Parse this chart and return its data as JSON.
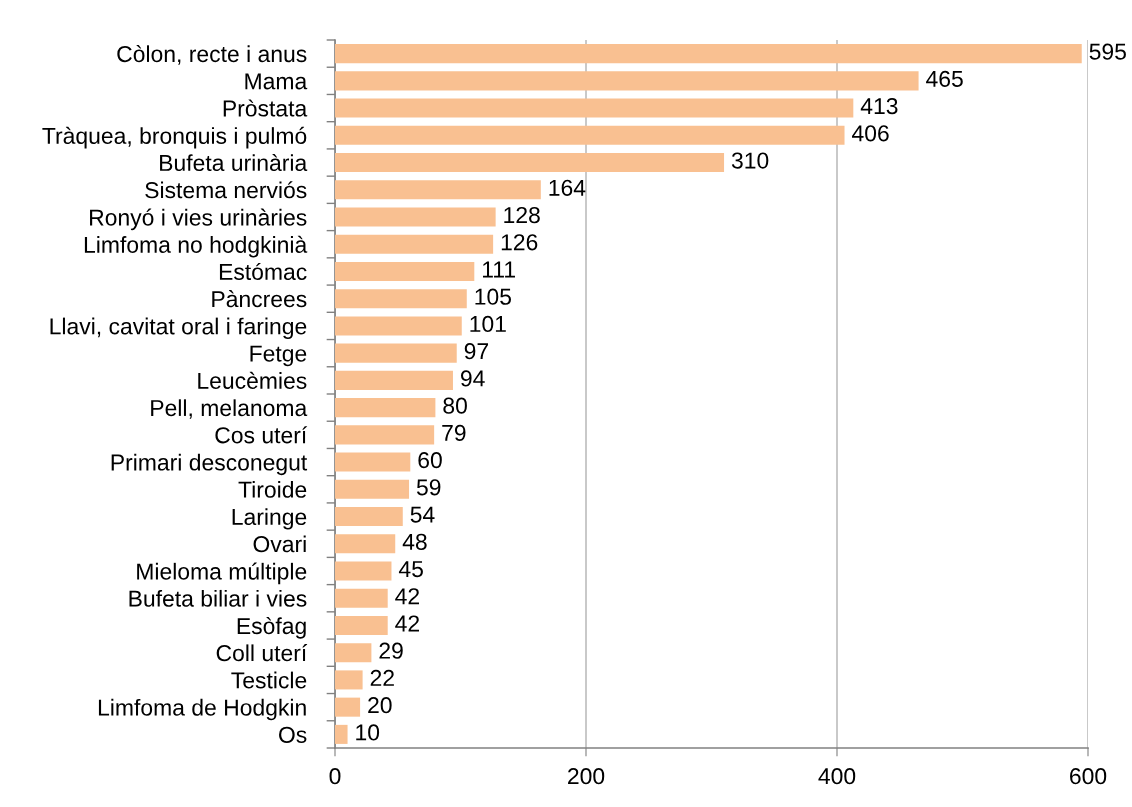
{
  "chart_data": {
    "type": "bar",
    "orientation": "horizontal",
    "categories": [
      "Còlon, recte i anus",
      "Mama",
      "Pròstata",
      "Tràquea, bronquis i pulmó",
      "Bufeta urinària",
      "Sistema nerviós",
      "Ronyó i vies urinàries",
      "Limfoma no hodgkinià",
      "Estómac",
      "Pàncrees",
      "Llavi, cavitat oral i faringe",
      "Fetge",
      "Leucèmies",
      "Pell, melanoma",
      "Cos uterí",
      "Primari desconegut",
      "Tiroide",
      "Laringe",
      "Ovari",
      "Mieloma múltiple",
      "Bufeta biliar i vies",
      "Esòfag",
      "Coll uterí",
      "Testicle",
      "Limfoma de Hodgkin",
      "Os"
    ],
    "values": [
      595,
      465,
      413,
      406,
      310,
      164,
      128,
      126,
      111,
      105,
      101,
      97,
      94,
      80,
      79,
      60,
      59,
      54,
      48,
      45,
      42,
      42,
      29,
      22,
      20,
      10
    ],
    "color": "#f9c091",
    "xlim": [
      0,
      600
    ],
    "xticks": [
      0,
      200,
      400,
      600
    ],
    "grid": "x",
    "data_labels": true,
    "legend": false
  }
}
